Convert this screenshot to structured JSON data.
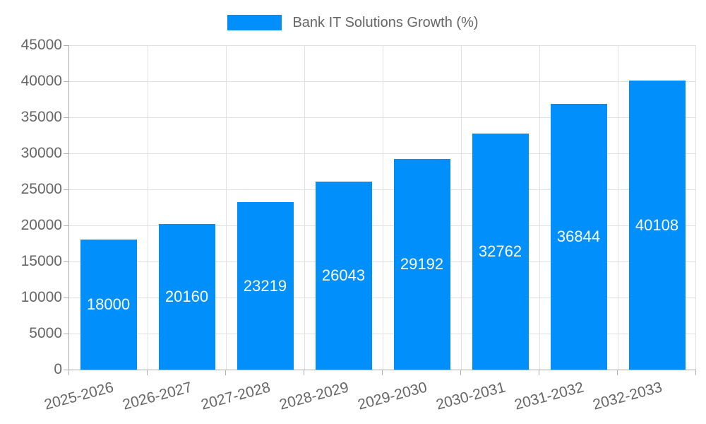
{
  "legend": {
    "label": "Bank IT Solutions Growth (%)"
  },
  "colors": {
    "bar": "#008FFB",
    "grid": "#e0e0e0",
    "axis": "#aaaaaa",
    "tick": "#b0b0b0",
    "axis_label": "#666666",
    "legend_text": "#666666",
    "data_label": "#ffffff",
    "background": "#ffffff"
  },
  "chart_data": {
    "type": "bar",
    "title": "Bank IT Solutions Growth (%)",
    "xlabel": "",
    "ylabel": "",
    "categories": [
      "2025-2026",
      "2026-2027",
      "2027-2028",
      "2028-2029",
      "2029-2030",
      "2030-2031",
      "2031-2032",
      "2032-2033"
    ],
    "values": [
      18000,
      20160,
      23219,
      26043,
      29192,
      32762,
      36844,
      40108
    ],
    "series": [
      {
        "name": "Bank IT Solutions Growth (%)",
        "values": [
          18000,
          20160,
          23219,
          26043,
          29192,
          32762,
          36844,
          40108
        ]
      }
    ],
    "ylim": [
      0,
      45000
    ],
    "yticks": [
      0,
      5000,
      10000,
      15000,
      20000,
      25000,
      30000,
      35000,
      40000,
      45000
    ],
    "grid": "horizontal and vertical gridlines",
    "legend_position": "top",
    "data_labels": "values shown in white, centered inside bars",
    "x_label_rotation_deg": -15
  }
}
